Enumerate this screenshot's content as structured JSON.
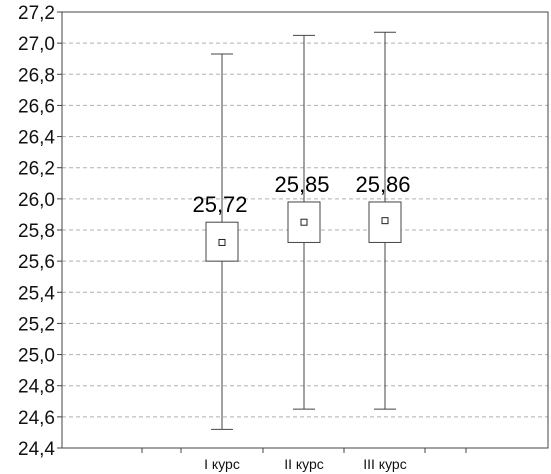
{
  "chart_data": {
    "type": "boxplot",
    "categories": [
      "I курс",
      "II курс",
      "III курс"
    ],
    "series": [
      {
        "mean": [
          25.72,
          25.85,
          25.86
        ],
        "box_low": [
          25.6,
          25.72,
          25.72
        ],
        "box_high": [
          25.85,
          25.98,
          25.98
        ],
        "whisker_low": [
          24.52,
          24.65,
          24.65
        ],
        "whisker_high": [
          26.93,
          27.05,
          27.07
        ]
      }
    ],
    "data_labels": [
      "25,72",
      "25,85",
      "25,86"
    ],
    "ylim": [
      24.4,
      27.2
    ],
    "yticks": [
      "24,4",
      "24,6",
      "24,8",
      "25,0",
      "25,2",
      "25,4",
      "25,6",
      "25,8",
      "26,0",
      "26,2",
      "26,4",
      "26,6",
      "26,8",
      "27,0",
      "27,2"
    ],
    "grid": true
  }
}
